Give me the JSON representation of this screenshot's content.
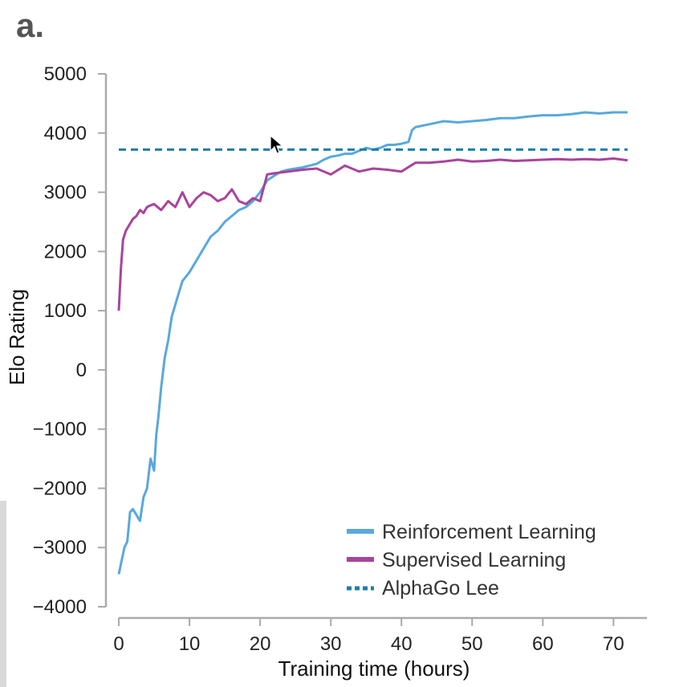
{
  "panel_label": "a.",
  "chart_data": {
    "type": "line",
    "xlabel": "Training time (hours)",
    "ylabel": "Elo Rating",
    "xlim": [
      0,
      72
    ],
    "ylim": [
      -4000,
      5000
    ],
    "x_ticks": [
      0,
      10,
      20,
      30,
      40,
      50,
      60,
      70
    ],
    "x_tick_labels": [
      "0",
      "10",
      "20",
      "30",
      "40",
      "50",
      "60",
      "70"
    ],
    "y_ticks": [
      5000,
      4000,
      3000,
      2000,
      1000,
      0,
      -1000,
      -2000,
      -3000,
      -4000
    ],
    "y_tick_labels": [
      "5000",
      "4000",
      "3000",
      "2000",
      "1000",
      "0",
      "−1000",
      "−2000",
      "−3000",
      "−4000"
    ],
    "legend_position": "bottom-right",
    "series": [
      {
        "name": "Reinforcement Learning",
        "style": "solid",
        "x": [
          0,
          0.8,
          1.2,
          1.6,
          2.0,
          2.5,
          3.0,
          3.5,
          4.0,
          4.5,
          5.0,
          5.3,
          5.6,
          6.0,
          6.5,
          7.0,
          7.5,
          8.0,
          8.5,
          9.0,
          10.0,
          11.0,
          12.0,
          13.0,
          14.0,
          15.0,
          16.0,
          17.0,
          18.0,
          19.0,
          20.0,
          21.0,
          22.0,
          23.0,
          24.0,
          25.0,
          26.0,
          27.0,
          28.0,
          29.0,
          30.0,
          31.0,
          32.0,
          33.0,
          34.0,
          35.0,
          36.0,
          37.0,
          38.0,
          39.0,
          40.0,
          41.0,
          41.5,
          42.0,
          44.0,
          46.0,
          48.0,
          50.0,
          52.0,
          54.0,
          56.0,
          58.0,
          60.0,
          62.0,
          64.0,
          66.0,
          68.0,
          70.0,
          72.0
        ],
        "y": [
          -3450,
          -3000,
          -2900,
          -2400,
          -2350,
          -2450,
          -2550,
          -2150,
          -2000,
          -1500,
          -1700,
          -1100,
          -800,
          -300,
          200,
          500,
          900,
          1100,
          1300,
          1500,
          1650,
          1850,
          2050,
          2250,
          2350,
          2500,
          2600,
          2700,
          2750,
          2850,
          3000,
          3200,
          3280,
          3350,
          3380,
          3400,
          3420,
          3450,
          3480,
          3550,
          3600,
          3620,
          3650,
          3650,
          3700,
          3750,
          3720,
          3750,
          3800,
          3800,
          3820,
          3850,
          4050,
          4100,
          4150,
          4200,
          4180,
          4200,
          4220,
          4250,
          4250,
          4280,
          4300,
          4300,
          4320,
          4350,
          4330,
          4350,
          4350
        ]
      },
      {
        "name": "Supervised Learning",
        "style": "solid",
        "x": [
          0,
          0.3,
          0.6,
          1.0,
          1.5,
          2.0,
          2.5,
          3.0,
          3.5,
          4.0,
          4.5,
          5.0,
          6.0,
          7.0,
          8.0,
          9.0,
          10.0,
          11.0,
          12.0,
          13.0,
          14.0,
          15.0,
          16.0,
          17.0,
          18.0,
          19.0,
          20.0,
          21.0,
          22.0,
          24.0,
          26.0,
          28.0,
          30.0,
          32.0,
          34.0,
          36.0,
          38.0,
          40.0,
          42.0,
          44.0,
          46.0,
          48.0,
          50.0,
          52.0,
          54.0,
          56.0,
          58.0,
          60.0,
          62.0,
          64.0,
          66.0,
          68.0,
          70.0,
          72.0
        ],
        "y": [
          1000,
          1700,
          2200,
          2350,
          2450,
          2550,
          2600,
          2700,
          2650,
          2750,
          2780,
          2800,
          2700,
          2850,
          2750,
          3000,
          2750,
          2900,
          3000,
          2950,
          2850,
          2900,
          3050,
          2850,
          2800,
          2900,
          2850,
          3300,
          3320,
          3350,
          3380,
          3400,
          3300,
          3450,
          3350,
          3400,
          3380,
          3350,
          3500,
          3500,
          3520,
          3550,
          3520,
          3530,
          3550,
          3530,
          3540,
          3550,
          3560,
          3550,
          3560,
          3550,
          3570,
          3540
        ]
      },
      {
        "name": "AlphaGo Lee",
        "style": "dashed",
        "x": [
          0,
          72
        ],
        "y": [
          3720,
          3720
        ]
      }
    ]
  },
  "colors": {
    "reinforcement": "#5aa8dc",
    "supervised": "#a8449c",
    "alphago": "#1a7fa8",
    "axis": "#aaaaaa"
  }
}
